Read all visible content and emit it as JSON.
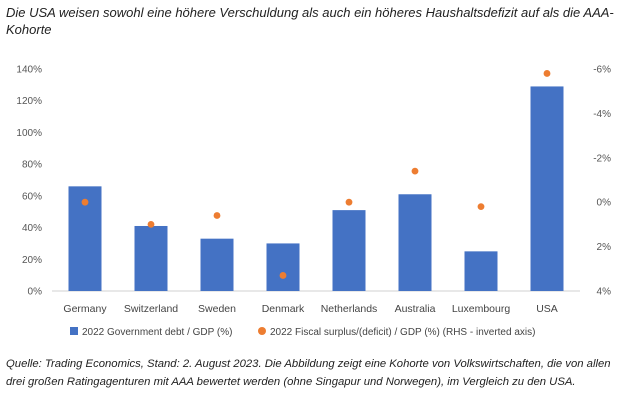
{
  "title": "Die USA weisen sowohl eine höhere Verschuldung als auch ein höheres Haushaltsdefizit auf als die AAA-Kohorte",
  "caption": "Quelle: Trading Economics, Stand: 2. August 2023. Die Abbildung zeigt eine Kohorte von Volkswirtschaften, die von allen drei großen Ratingagenturen mit AAA bewertet werden (ohne Singapur und Norwegen), im Vergleich zu den USA.",
  "chart_data": {
    "type": "bar",
    "categories": [
      "Germany",
      "Switzerland",
      "Sweden",
      "Denmark",
      "Netherlands",
      "Australia",
      "Luxembourg",
      "USA"
    ],
    "series": [
      {
        "name": "2022 Government debt / GDP (%)",
        "type": "bar",
        "axis": "left",
        "color": "#4472C4",
        "values": [
          66,
          41,
          33,
          30,
          51,
          61,
          25,
          129
        ]
      },
      {
        "name": "2022 Fiscal surplus/(deficit) / GDP (%) (RHS - inverted axis)",
        "type": "scatter",
        "axis": "right",
        "color": "#ED7D31",
        "values": [
          0,
          1,
          0.6,
          3.3,
          0,
          -1.4,
          0.2,
          -5.8
        ]
      }
    ],
    "left_axis": {
      "min": 0,
      "max": 140,
      "step": 20,
      "tick_labels": [
        "0%",
        "20%",
        "40%",
        "60%",
        "80%",
        "100%",
        "120%",
        "140%"
      ]
    },
    "right_axis": {
      "min": -6,
      "max": 4,
      "inverted": true,
      "tick_values": [
        -6,
        -4,
        -2,
        0,
        2,
        4
      ],
      "tick_labels": [
        "-6%",
        "-4%",
        "-2%",
        "0%",
        "2%",
        "4%"
      ]
    },
    "grid": false,
    "legend_position": "bottom"
  }
}
